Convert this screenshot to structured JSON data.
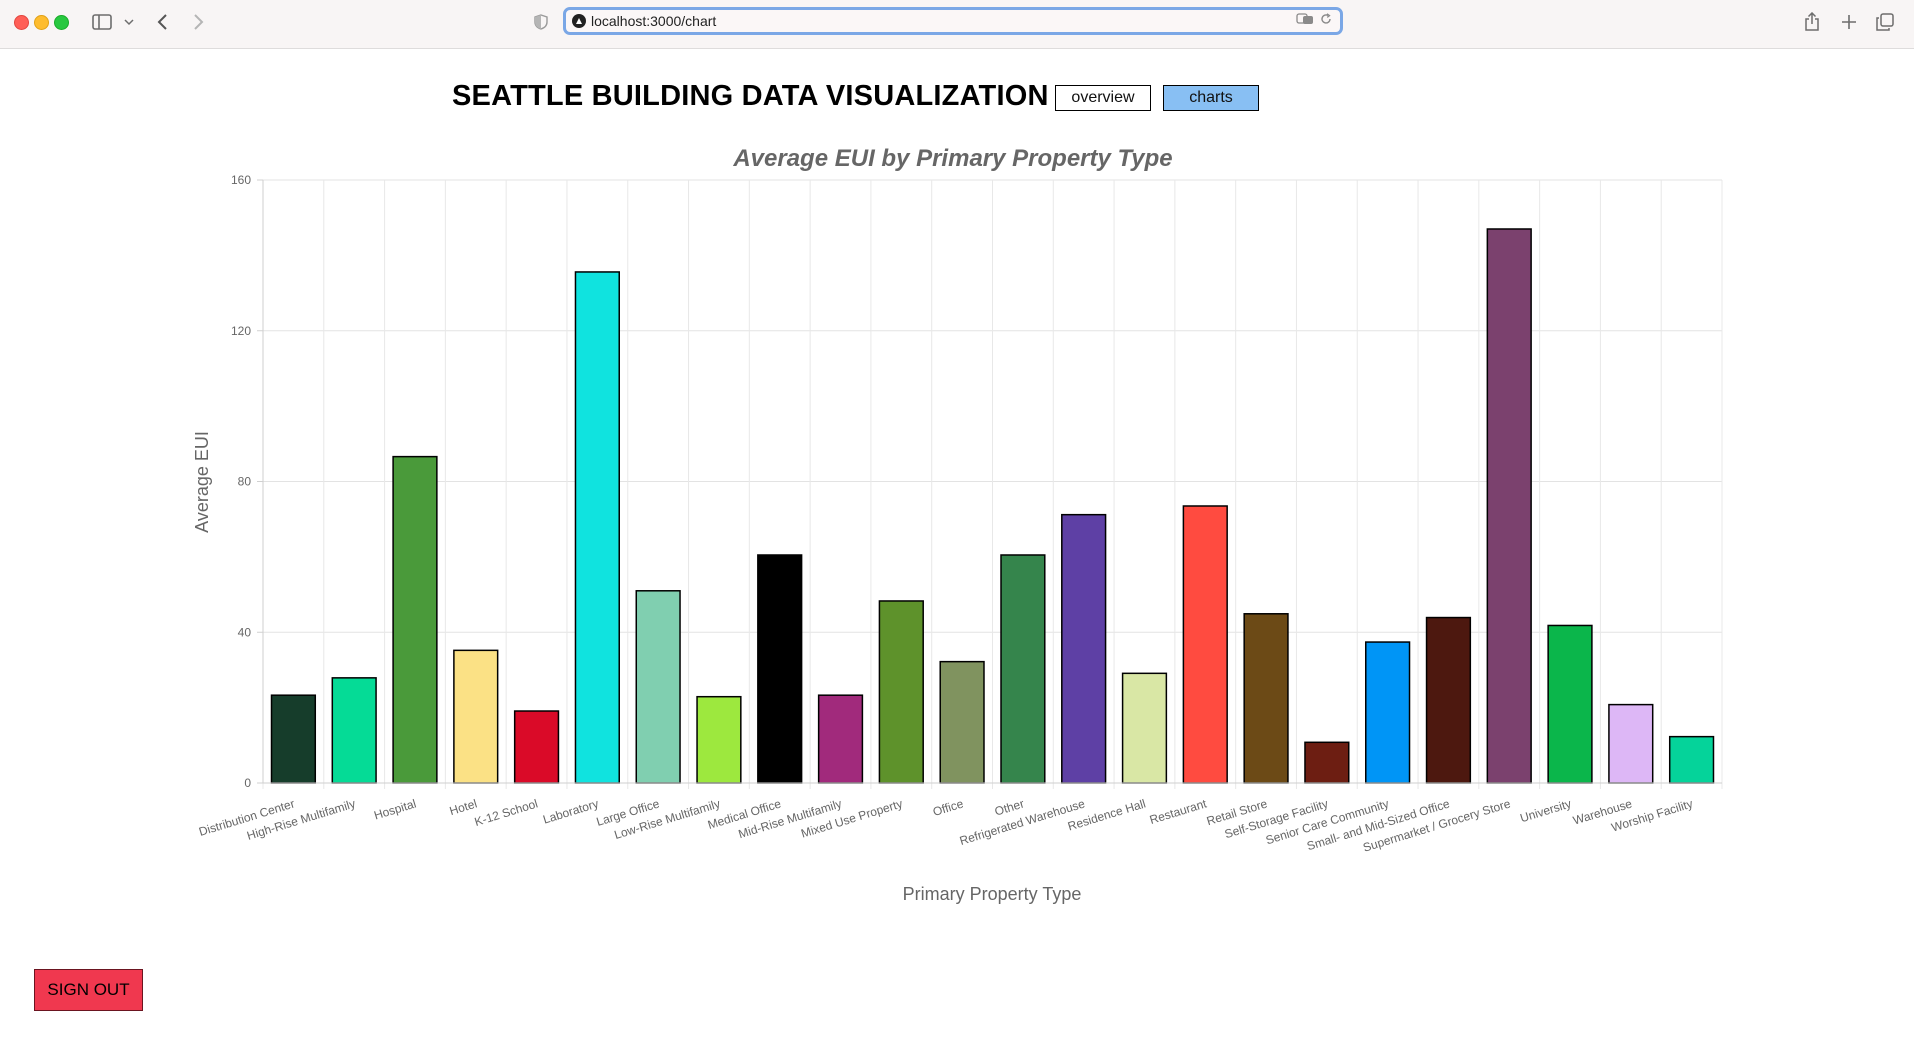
{
  "browser": {
    "url": "localhost:3000/chart"
  },
  "app": {
    "title": "SEATTLE BUILDING DATA VISUALIZATION",
    "nav": {
      "overview_label": "overview",
      "charts_label": "charts"
    },
    "signout_label": "SIGN OUT",
    "colors": {
      "active_nav": "#88bff3",
      "signout": "#f0384f"
    }
  },
  "chart_data": {
    "type": "bar",
    "title": "Average EUI by Primary Property Type",
    "xlabel": "Primary Property Type",
    "ylabel": "Average EUI",
    "ylim": [
      0,
      160
    ],
    "yticks": [
      0,
      40,
      80,
      120,
      160
    ],
    "grid": true,
    "categories": [
      "Distribution Center",
      "High-Rise Multifamily",
      "Hospital",
      "Hotel",
      "K-12 School",
      "Laboratory",
      "Large Office",
      "Low-Rise Multifamily",
      "Medical Office",
      "Mid-Rise Multifamily",
      "Mixed Use Property",
      "Office",
      "Other",
      "Refrigerated Warehouse",
      "Residence Hall",
      "Restaurant",
      "Retail Store",
      "Self-Storage Facility",
      "Senior Care Community",
      "Small- and Mid-Sized Office",
      "Supermarket / Grocery Store",
      "University",
      "Warehouse",
      "Worship Facility"
    ],
    "values": [
      23.3,
      27.9,
      86.6,
      35.2,
      19.1,
      135.6,
      51.0,
      22.9,
      60.5,
      23.3,
      48.3,
      32.2,
      60.5,
      71.2,
      29.1,
      73.5,
      44.9,
      10.8,
      37.4,
      43.9,
      147.0,
      41.8,
      20.8,
      12.3
    ],
    "colors": [
      "#163d2b",
      "#05db96",
      "#4a9a3a",
      "#fbe185",
      "#da0a28",
      "#10e3df",
      "#80cfb0",
      "#9de83e",
      "#000000",
      "#a12a7c",
      "#5e922b",
      "#80935f",
      "#35854c",
      "#5e40a5",
      "#d9e7a5",
      "#ff4b40",
      "#6c4a16",
      "#6d1e12",
      "#0095f6",
      "#4d180f",
      "#7b416e",
      "#0bb64b",
      "#ddb7f6",
      "#05d39a"
    ]
  }
}
